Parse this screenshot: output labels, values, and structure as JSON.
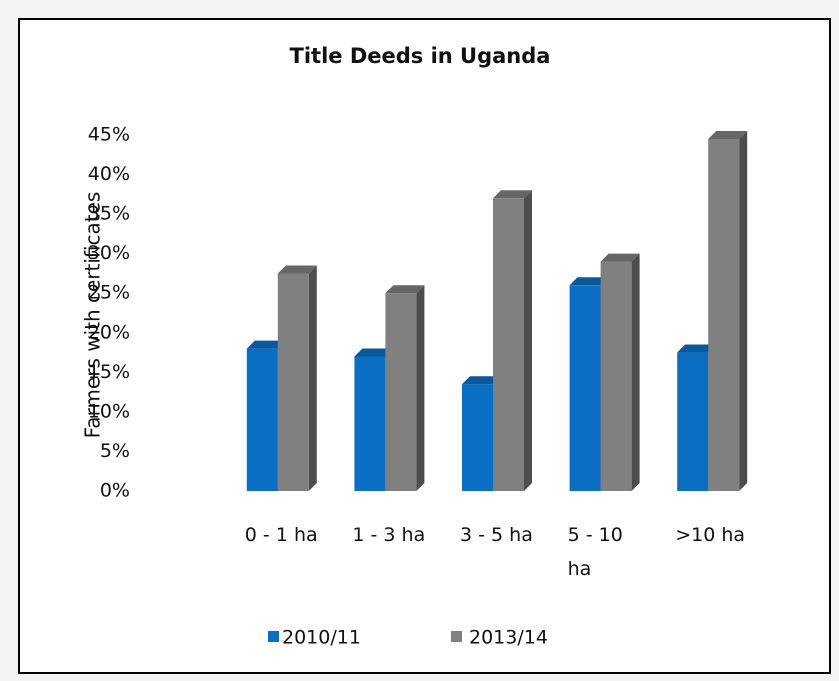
{
  "chart_data": {
    "type": "bar",
    "title": "Title Deeds in Uganda",
    "y_label": "Farmers with certificates",
    "categories": [
      "0 - 1 ha",
      "1 - 3 ha",
      "3 - 5 ha",
      "5 - 10 ha",
      ">10 ha"
    ],
    "series": [
      {
        "name": "2010/11",
        "color": "#0a6fc2",
        "values": [
          18,
          17,
          13.5,
          26,
          17.5
        ]
      },
      {
        "name": "2013/14",
        "color": "#808080",
        "values": [
          27.5,
          25,
          37,
          29,
          44.5
        ]
      }
    ],
    "ylim": [
      0,
      45
    ],
    "yticks": [
      {
        "value": 0,
        "label": "0%"
      },
      {
        "value": 5,
        "label": "5%"
      },
      {
        "value": 10,
        "label": "10%"
      },
      {
        "value": 15,
        "label": "15%"
      },
      {
        "value": 20,
        "label": "20%"
      },
      {
        "value": 25,
        "label": "25%"
      },
      {
        "value": 30,
        "label": "30%"
      },
      {
        "value": 35,
        "label": "35%"
      },
      {
        "value": 40,
        "label": "40%"
      },
      {
        "value": 45,
        "label": "45%"
      }
    ],
    "legend": "bottom"
  }
}
